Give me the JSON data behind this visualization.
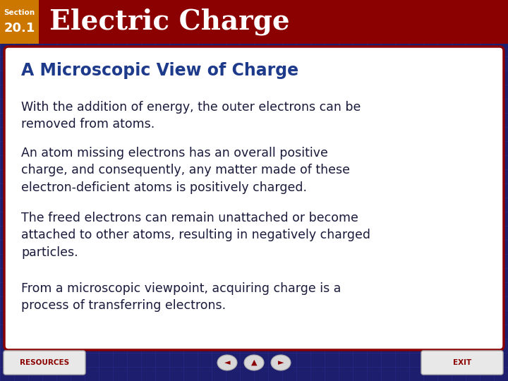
{
  "header_bg_color": "#8B0000",
  "header_text": "Electric Charge",
  "header_text_color": "#FFFFFF",
  "section_bg_color": "#CC7700",
  "section_text_color": "#FFFFFF",
  "body_bg_color": "#1E1E6E",
  "grid_color": "#2D2D90",
  "content_box_bg": "#FFFFFF",
  "content_box_border": "#8B0000",
  "subtitle_text": "A Microscopic View of Charge",
  "subtitle_color": "#1E3A8A",
  "body_text_color": "#1A1A3A",
  "paragraphs": [
    "With the addition of energy, the outer electrons can be\nremoved from atoms.",
    "An atom missing electrons has an overall positive\ncharge, and consequently, any matter made of these\nelectron-deficient atoms is positively charged.",
    "The freed electrons can remain unattached or become\nattached to other atoms, resulting in negatively charged\nparticles.",
    "From a microscopic viewpoint, acquiring charge is a\nprocess of transferring electrons."
  ],
  "resources_text": "RESOURCES",
  "exit_text": "EXIT",
  "button_bg": "#E8E8E8",
  "button_border": "#AAAAAA",
  "button_text_color": "#8B0000",
  "nav_oval_bg": "#D8D8D8",
  "nav_arrow_color": "#8B0000"
}
